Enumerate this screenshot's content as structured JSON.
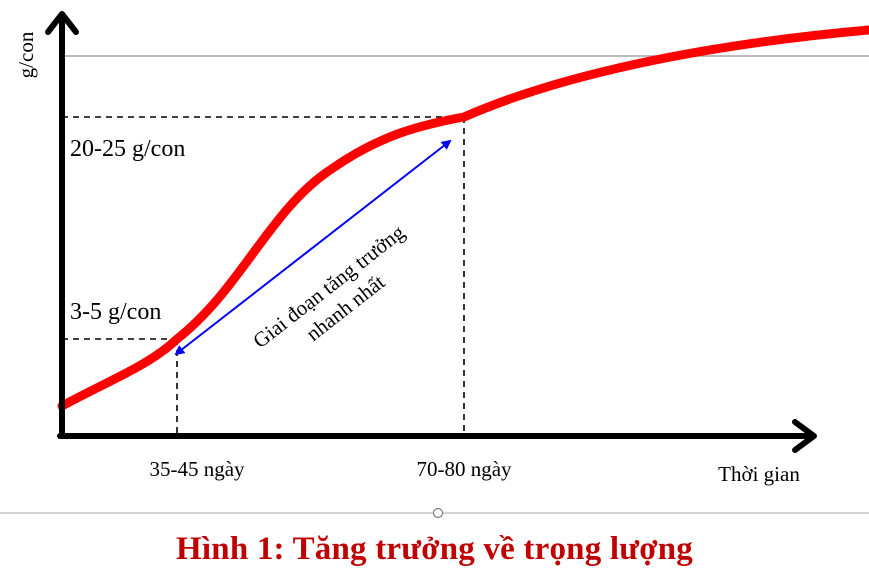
{
  "diagram": {
    "y_axis_label": "g/con",
    "x_axis_label": "Thời gian",
    "y_marks": [
      "20-25 g/con",
      "3-5 g/con"
    ],
    "x_marks": [
      "35-45 ngày",
      "70-80 ngày"
    ],
    "phase_label_line1": "Giai đoạn tăng trưởng",
    "phase_label_line2": "nhanh nhất",
    "curve_color": "#ff0000",
    "arrow_color": "#0000ff",
    "axis_color": "#000000"
  },
  "caption": {
    "text": "Hình 1: Tăng trưởng về trọng lượng",
    "color": "#c00000"
  }
}
